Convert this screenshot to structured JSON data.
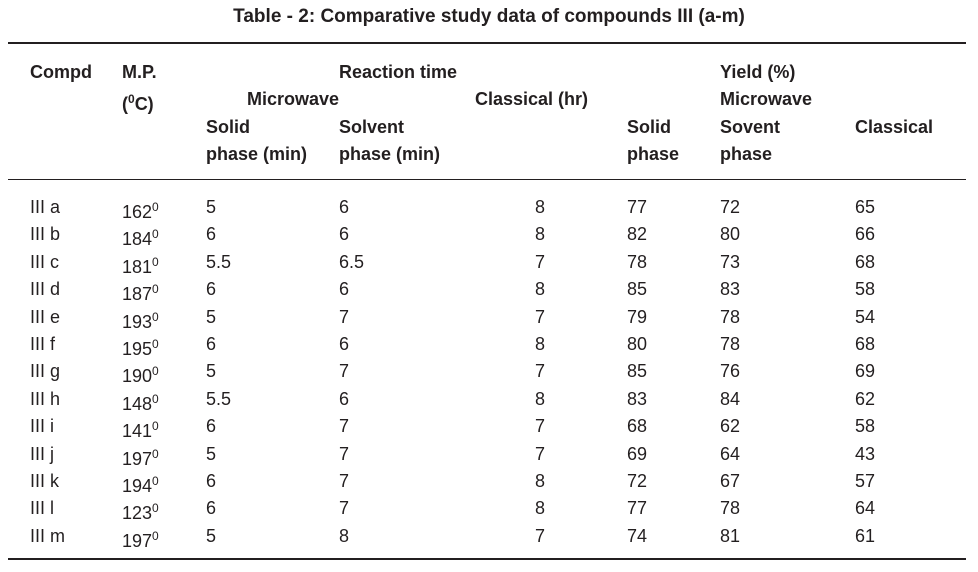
{
  "title": "Table - 2: Comparative study data of compounds III (a-m)",
  "headers": {
    "compd": "Compd",
    "mp_line1": "M.P.",
    "mp_unit_pre": "(",
    "mp_unit_sup": "0",
    "mp_unit_post": "C)",
    "reaction_time": "Reaction time",
    "microwave": "Microwave",
    "classical_hr": "Classical (hr)",
    "solid_line1": "Solid",
    "solid_line2": "phase (min)",
    "solvent_line1": "Solvent",
    "solvent_line2": "phase (min)",
    "yield": "Yield (%)",
    "yield_microwave": "Microwave",
    "y_solid_line1": "Solid",
    "y_solid_line2": "phase",
    "y_sovent_line1": "Sovent",
    "y_sovent_line2": "phase",
    "classical": "Classical"
  },
  "degree_sup": "0",
  "rows": [
    {
      "compd": "III a",
      "mp": "162",
      "solid_min": "5",
      "solvent_min": "6",
      "classical_hr": "8",
      "y_solid": "77",
      "y_solvent": "72",
      "y_classical": "65"
    },
    {
      "compd": "III b",
      "mp": "184",
      "solid_min": "6",
      "solvent_min": "6",
      "classical_hr": "8",
      "y_solid": "82",
      "y_solvent": "80",
      "y_classical": "66"
    },
    {
      "compd": "III c",
      "mp": "181",
      "solid_min": "5.5",
      "solvent_min": "6.5",
      "classical_hr": "7",
      "y_solid": "78",
      "y_solvent": "73",
      "y_classical": "68"
    },
    {
      "compd": "III d",
      "mp": "187",
      "solid_min": "6",
      "solvent_min": "6",
      "classical_hr": "8",
      "y_solid": "85",
      "y_solvent": "83",
      "y_classical": "58"
    },
    {
      "compd": "III e",
      "mp": "193",
      "solid_min": "5",
      "solvent_min": "7",
      "classical_hr": "7",
      "y_solid": "79",
      "y_solvent": "78",
      "y_classical": "54"
    },
    {
      "compd": "III f",
      "mp": "195",
      "solid_min": "6",
      "solvent_min": "6",
      "classical_hr": "8",
      "y_solid": "80",
      "y_solvent": "78",
      "y_classical": "68"
    },
    {
      "compd": "III g",
      "mp": "190",
      "solid_min": "5",
      "solvent_min": "7",
      "classical_hr": "7",
      "y_solid": "85",
      "y_solvent": "76",
      "y_classical": "69"
    },
    {
      "compd": "III h",
      "mp": "148",
      "solid_min": "5.5",
      "solvent_min": "6",
      "classical_hr": "8",
      "y_solid": "83",
      "y_solvent": "84",
      "y_classical": "62"
    },
    {
      "compd": "III i",
      "mp": "141",
      "solid_min": "6",
      "solvent_min": "7",
      "classical_hr": "7",
      "y_solid": "68",
      "y_solvent": "62",
      "y_classical": "58"
    },
    {
      "compd": "III j",
      "mp": "197",
      "solid_min": "5",
      "solvent_min": "7",
      "classical_hr": "7",
      "y_solid": "69",
      "y_solvent": "64",
      "y_classical": "43"
    },
    {
      "compd": "III k",
      "mp": "194",
      "solid_min": "6",
      "solvent_min": "7",
      "classical_hr": "8",
      "y_solid": "72",
      "y_solvent": "67",
      "y_classical": "57"
    },
    {
      "compd": "III l",
      "mp": "123",
      "solid_min": "6",
      "solvent_min": "7",
      "classical_hr": "8",
      "y_solid": "77",
      "y_solvent": "78",
      "y_classical": "64"
    },
    {
      "compd": "III m",
      "mp": "197",
      "solid_min": "5",
      "solvent_min": "8",
      "classical_hr": "7",
      "y_solid": "74",
      "y_solvent": "81",
      "y_classical": "61"
    }
  ]
}
